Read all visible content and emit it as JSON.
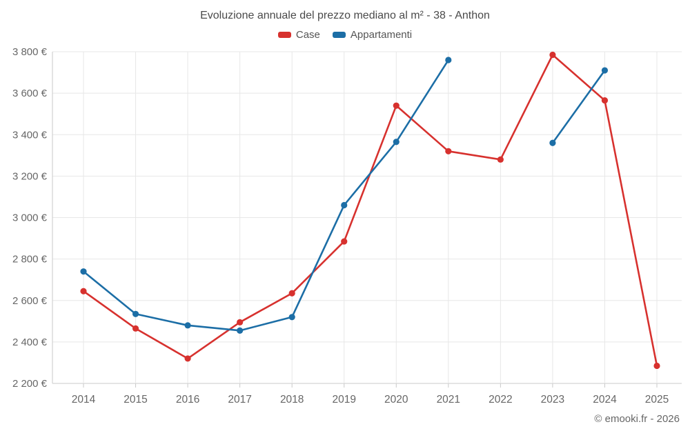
{
  "page": {
    "title": "Evoluzione annuale del prezzo mediano al m² - 38 - Anthon",
    "footer": "© emooki.fr - 2026"
  },
  "legend": {
    "items": [
      {
        "label": "Case",
        "color": "#d7312e"
      },
      {
        "label": "Appartamenti",
        "color": "#1c6ea6"
      }
    ]
  },
  "colors": {
    "case_series": "#d7312e",
    "appartamenti_series": "#1c6ea6",
    "gridline": "#e7e7e7",
    "axis": "#c9c9c9",
    "tick_text": "#666666",
    "title_text": "#4a4a4a"
  },
  "chart_data": {
    "type": "line",
    "title": "Evoluzione annuale del prezzo mediano al m² - 38 - Anthon",
    "categories": [
      "2014",
      "2015",
      "2016",
      "2017",
      "2018",
      "2019",
      "2020",
      "2021",
      "2022",
      "2023",
      "2024",
      "2025"
    ],
    "series": [
      {
        "name": "Case",
        "color": "#d7312e",
        "values": [
          2645,
          2465,
          2320,
          2495,
          2635,
          2885,
          3540,
          3320,
          3280,
          3785,
          3565,
          2285
        ]
      },
      {
        "name": "Appartamenti",
        "color": "#1c6ea6",
        "values": [
          2740,
          2535,
          2480,
          2455,
          2520,
          3060,
          3365,
          3760,
          null,
          3360,
          3710,
          null
        ]
      }
    ],
    "xlabel": "",
    "ylabel": "",
    "ylim": [
      2200,
      3800
    ],
    "ytick_step": 200,
    "ytick_labels": [
      "2 200 €",
      "2 400 €",
      "2 600 €",
      "2 800 €",
      "3 000 €",
      "3 200 €",
      "3 400 €",
      "3 600 €",
      "3 800 €"
    ],
    "grid": true,
    "legend_position": "top"
  }
}
